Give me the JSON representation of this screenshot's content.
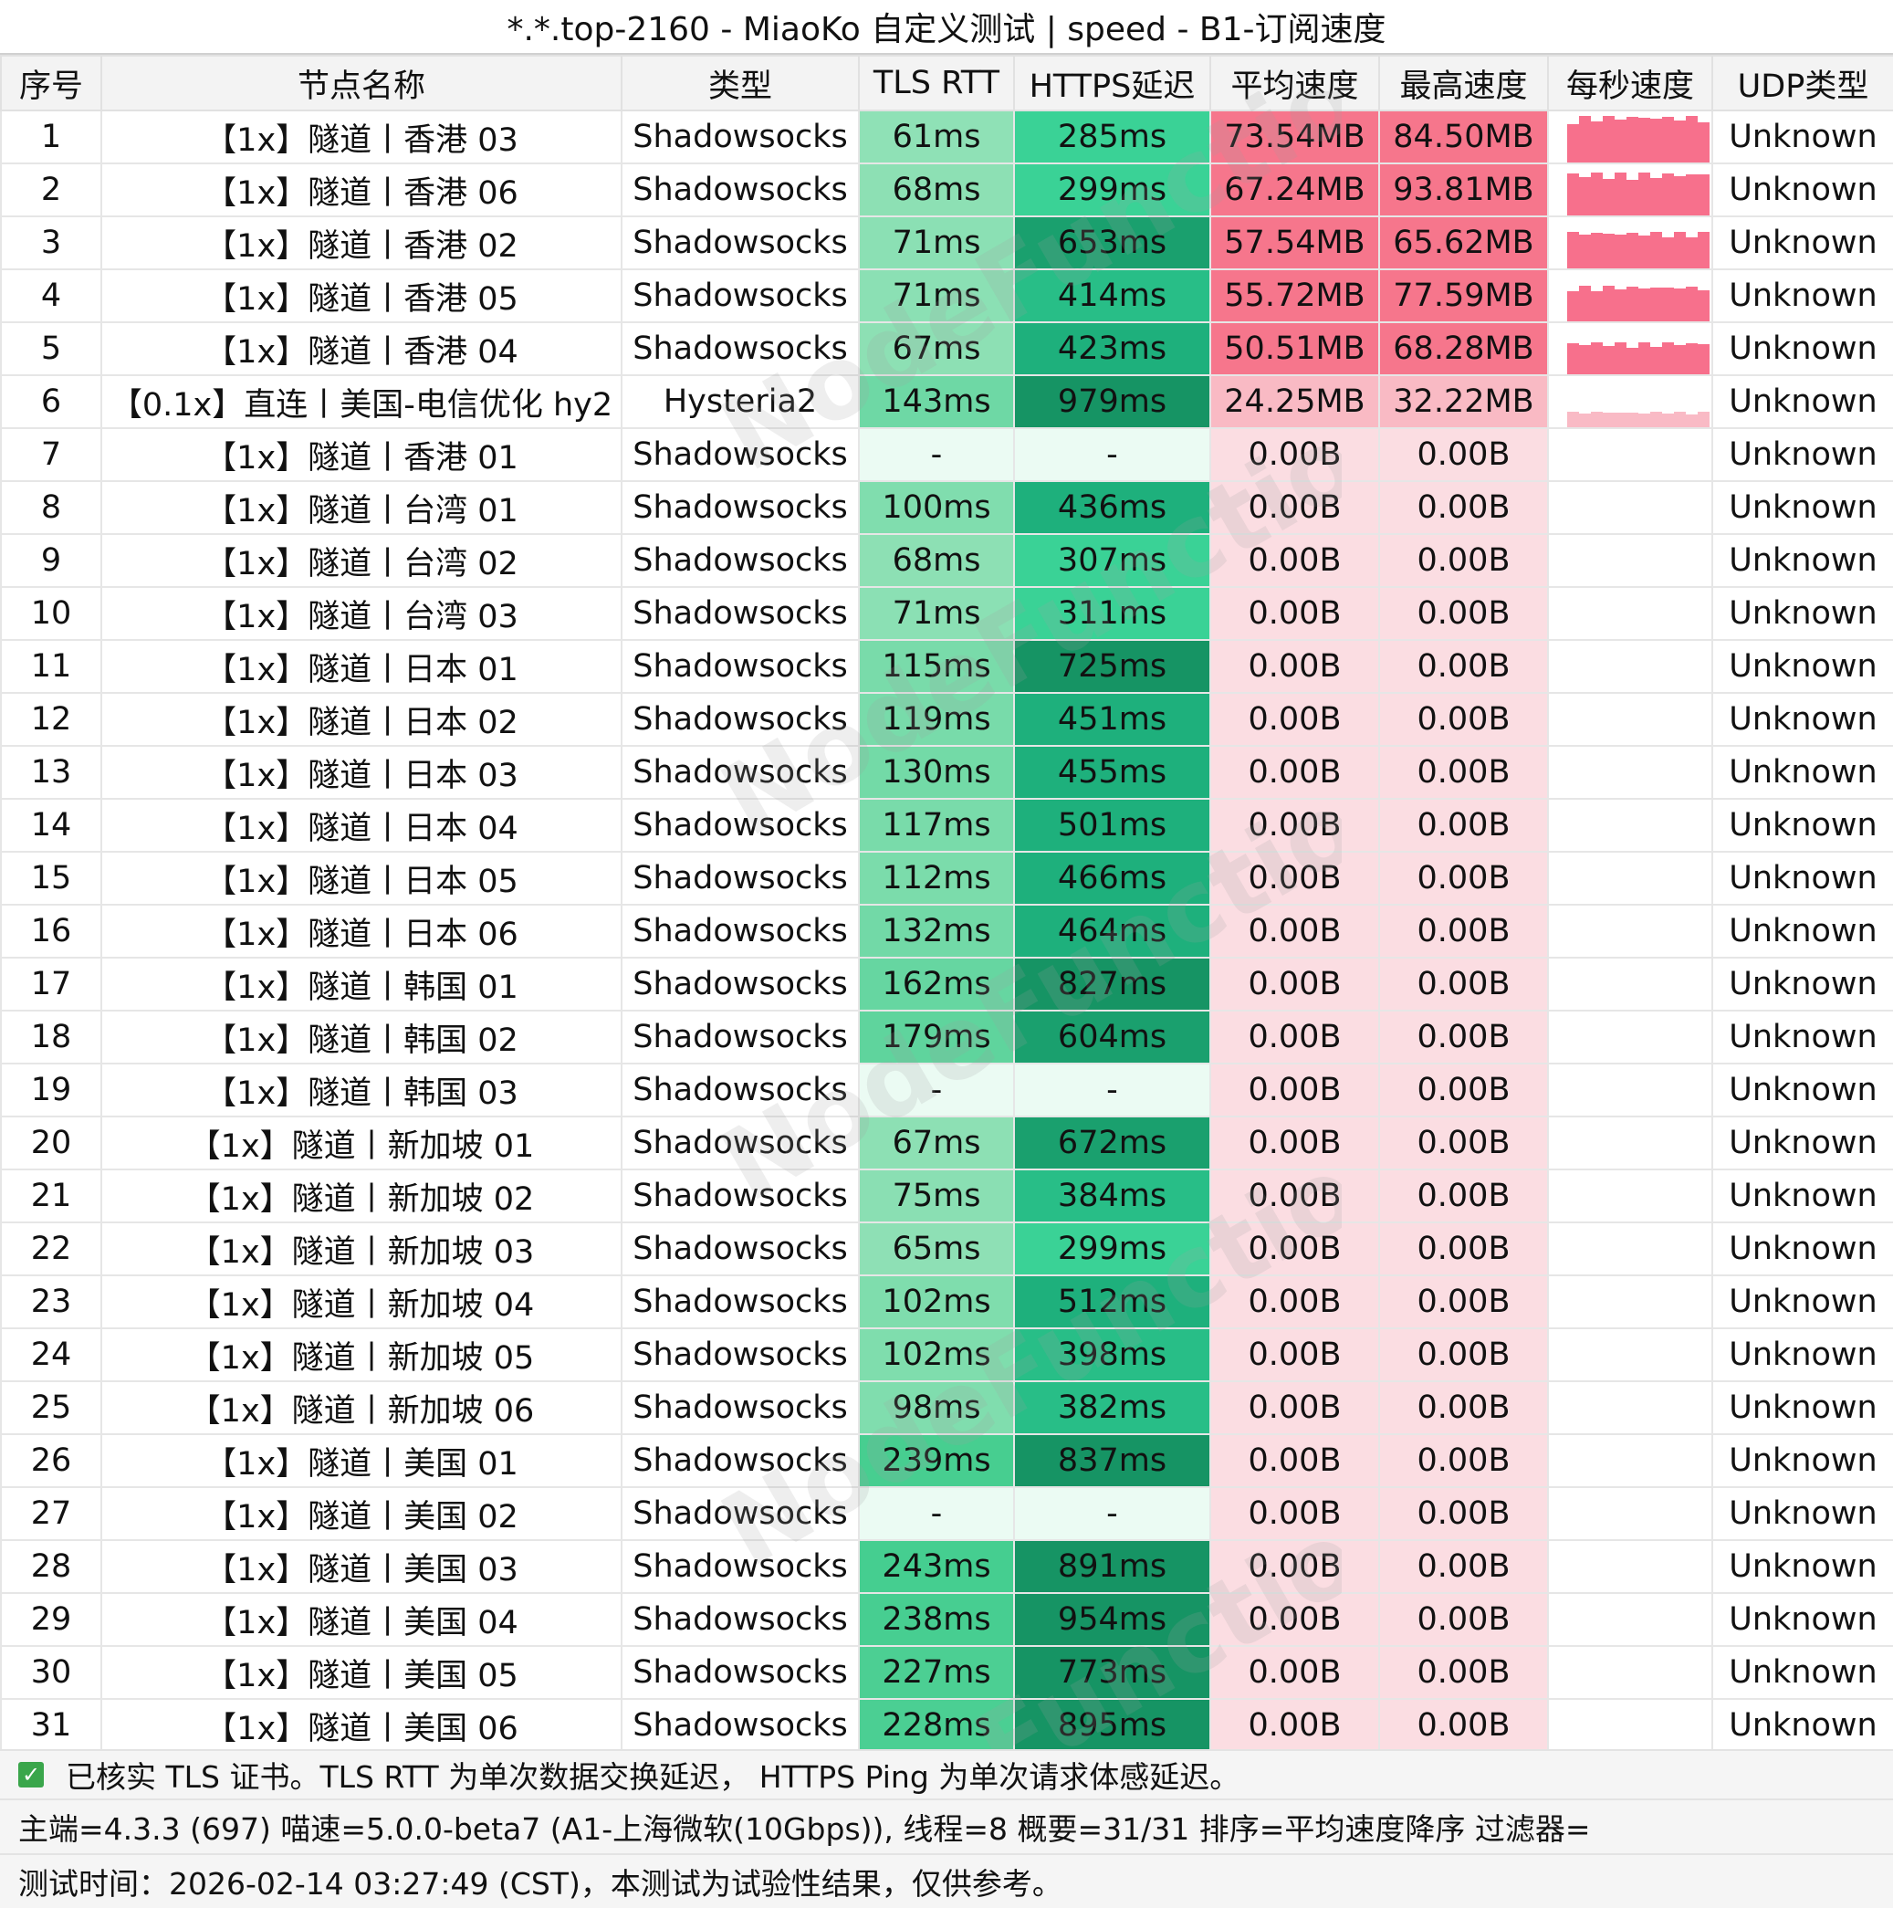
{
  "title": "*.*.top-2160 - MiaoKo 自定义测试 | speed - B1-订阅速度",
  "watermark": "NodeFunction",
  "columns": [
    "序号",
    "节点名称",
    "类型",
    "TLS RTT",
    "HTTPS延迟",
    "平均速度",
    "最高速度",
    "每秒速度",
    "UDP类型"
  ],
  "rows": [
    {
      "id": "1",
      "name": "【1x】隧道丨香港 03",
      "type": "Shadowsocks",
      "tls": "61ms",
      "https": "285ms",
      "avg": "73.54MB",
      "max": "84.50MB",
      "udp": "Unknown"
    },
    {
      "id": "2",
      "name": "【1x】隧道丨香港 06",
      "type": "Shadowsocks",
      "tls": "68ms",
      "https": "299ms",
      "avg": "67.24MB",
      "max": "93.81MB",
      "udp": "Unknown"
    },
    {
      "id": "3",
      "name": "【1x】隧道丨香港 02",
      "type": "Shadowsocks",
      "tls": "71ms",
      "https": "653ms",
      "avg": "57.54MB",
      "max": "65.62MB",
      "udp": "Unknown"
    },
    {
      "id": "4",
      "name": "【1x】隧道丨香港 05",
      "type": "Shadowsocks",
      "tls": "71ms",
      "https": "414ms",
      "avg": "55.72MB",
      "max": "77.59MB",
      "udp": "Unknown"
    },
    {
      "id": "5",
      "name": "【1x】隧道丨香港 04",
      "type": "Shadowsocks",
      "tls": "67ms",
      "https": "423ms",
      "avg": "50.51MB",
      "max": "68.28MB",
      "udp": "Unknown"
    },
    {
      "id": "6",
      "name": "【0.1x】直连丨美国-电信优化 hy2",
      "type": "Hysteria2",
      "tls": "143ms",
      "https": "979ms",
      "avg": "24.25MB",
      "max": "32.22MB",
      "udp": "Unknown"
    },
    {
      "id": "7",
      "name": "【1x】隧道丨香港 01",
      "type": "Shadowsocks",
      "tls": "-",
      "https": "-",
      "avg": "0.00B",
      "max": "0.00B",
      "udp": "Unknown"
    },
    {
      "id": "8",
      "name": "【1x】隧道丨台湾 01",
      "type": "Shadowsocks",
      "tls": "100ms",
      "https": "436ms",
      "avg": "0.00B",
      "max": "0.00B",
      "udp": "Unknown"
    },
    {
      "id": "9",
      "name": "【1x】隧道丨台湾 02",
      "type": "Shadowsocks",
      "tls": "68ms",
      "https": "307ms",
      "avg": "0.00B",
      "max": "0.00B",
      "udp": "Unknown"
    },
    {
      "id": "10",
      "name": "【1x】隧道丨台湾 03",
      "type": "Shadowsocks",
      "tls": "71ms",
      "https": "311ms",
      "avg": "0.00B",
      "max": "0.00B",
      "udp": "Unknown"
    },
    {
      "id": "11",
      "name": "【1x】隧道丨日本 01",
      "type": "Shadowsocks",
      "tls": "115ms",
      "https": "725ms",
      "avg": "0.00B",
      "max": "0.00B",
      "udp": "Unknown"
    },
    {
      "id": "12",
      "name": "【1x】隧道丨日本 02",
      "type": "Shadowsocks",
      "tls": "119ms",
      "https": "451ms",
      "avg": "0.00B",
      "max": "0.00B",
      "udp": "Unknown"
    },
    {
      "id": "13",
      "name": "【1x】隧道丨日本 03",
      "type": "Shadowsocks",
      "tls": "130ms",
      "https": "455ms",
      "avg": "0.00B",
      "max": "0.00B",
      "udp": "Unknown"
    },
    {
      "id": "14",
      "name": "【1x】隧道丨日本 04",
      "type": "Shadowsocks",
      "tls": "117ms",
      "https": "501ms",
      "avg": "0.00B",
      "max": "0.00B",
      "udp": "Unknown"
    },
    {
      "id": "15",
      "name": "【1x】隧道丨日本 05",
      "type": "Shadowsocks",
      "tls": "112ms",
      "https": "466ms",
      "avg": "0.00B",
      "max": "0.00B",
      "udp": "Unknown"
    },
    {
      "id": "16",
      "name": "【1x】隧道丨日本 06",
      "type": "Shadowsocks",
      "tls": "132ms",
      "https": "464ms",
      "avg": "0.00B",
      "max": "0.00B",
      "udp": "Unknown"
    },
    {
      "id": "17",
      "name": "【1x】隧道丨韩国 01",
      "type": "Shadowsocks",
      "tls": "162ms",
      "https": "827ms",
      "avg": "0.00B",
      "max": "0.00B",
      "udp": "Unknown"
    },
    {
      "id": "18",
      "name": "【1x】隧道丨韩国 02",
      "type": "Shadowsocks",
      "tls": "179ms",
      "https": "604ms",
      "avg": "0.00B",
      "max": "0.00B",
      "udp": "Unknown"
    },
    {
      "id": "19",
      "name": "【1x】隧道丨韩国 03",
      "type": "Shadowsocks",
      "tls": "-",
      "https": "-",
      "avg": "0.00B",
      "max": "0.00B",
      "udp": "Unknown"
    },
    {
      "id": "20",
      "name": "【1x】隧道丨新加坡 01",
      "type": "Shadowsocks",
      "tls": "67ms",
      "https": "672ms",
      "avg": "0.00B",
      "max": "0.00B",
      "udp": "Unknown"
    },
    {
      "id": "21",
      "name": "【1x】隧道丨新加坡 02",
      "type": "Shadowsocks",
      "tls": "75ms",
      "https": "384ms",
      "avg": "0.00B",
      "max": "0.00B",
      "udp": "Unknown"
    },
    {
      "id": "22",
      "name": "【1x】隧道丨新加坡 03",
      "type": "Shadowsocks",
      "tls": "65ms",
      "https": "299ms",
      "avg": "0.00B",
      "max": "0.00B",
      "udp": "Unknown"
    },
    {
      "id": "23",
      "name": "【1x】隧道丨新加坡 04",
      "type": "Shadowsocks",
      "tls": "102ms",
      "https": "512ms",
      "avg": "0.00B",
      "max": "0.00B",
      "udp": "Unknown"
    },
    {
      "id": "24",
      "name": "【1x】隧道丨新加坡 05",
      "type": "Shadowsocks",
      "tls": "102ms",
      "https": "398ms",
      "avg": "0.00B",
      "max": "0.00B",
      "udp": "Unknown"
    },
    {
      "id": "25",
      "name": "【1x】隧道丨新加坡 06",
      "type": "Shadowsocks",
      "tls": "98ms",
      "https": "382ms",
      "avg": "0.00B",
      "max": "0.00B",
      "udp": "Unknown"
    },
    {
      "id": "26",
      "name": "【1x】隧道丨美国 01",
      "type": "Shadowsocks",
      "tls": "239ms",
      "https": "837ms",
      "avg": "0.00B",
      "max": "0.00B",
      "udp": "Unknown"
    },
    {
      "id": "27",
      "name": "【1x】隧道丨美国 02",
      "type": "Shadowsocks",
      "tls": "-",
      "https": "-",
      "avg": "0.00B",
      "max": "0.00B",
      "udp": "Unknown"
    },
    {
      "id": "28",
      "name": "【1x】隧道丨美国 03",
      "type": "Shadowsocks",
      "tls": "243ms",
      "https": "891ms",
      "avg": "0.00B",
      "max": "0.00B",
      "udp": "Unknown"
    },
    {
      "id": "29",
      "name": "【1x】隧道丨美国 04",
      "type": "Shadowsocks",
      "tls": "238ms",
      "https": "954ms",
      "avg": "0.00B",
      "max": "0.00B",
      "udp": "Unknown"
    },
    {
      "id": "30",
      "name": "【1x】隧道丨美国 05",
      "type": "Shadowsocks",
      "tls": "227ms",
      "https": "773ms",
      "avg": "0.00B",
      "max": "0.00B",
      "udp": "Unknown"
    },
    {
      "id": "31",
      "name": "【1x】隧道丨美国 06",
      "type": "Shadowsocks",
      "tls": "228ms",
      "https": "895ms",
      "avg": "0.00B",
      "max": "0.00B",
      "udp": "Unknown"
    }
  ],
  "footer": {
    "note": "已核实 TLS 证书。TLS RTT 为单次数据交换延迟， HTTPS Ping 为单次请求体感延迟。",
    "info": "主端=4.3.3 (697) 喵速=5.0.0-beta7 (A1-上海微软(10Gbps)), 线程=8 概要=31/31 排序=平均速度降序 过滤器=",
    "time": "测试时间：2026-02-14 03:27:49 (CST)，本测试为试验性结果，仅供参考。"
  },
  "colors": {
    "empty_latency": "#ebfbf3",
    "speed_zero": "#fbdde2",
    "check": "#3aa64b"
  }
}
